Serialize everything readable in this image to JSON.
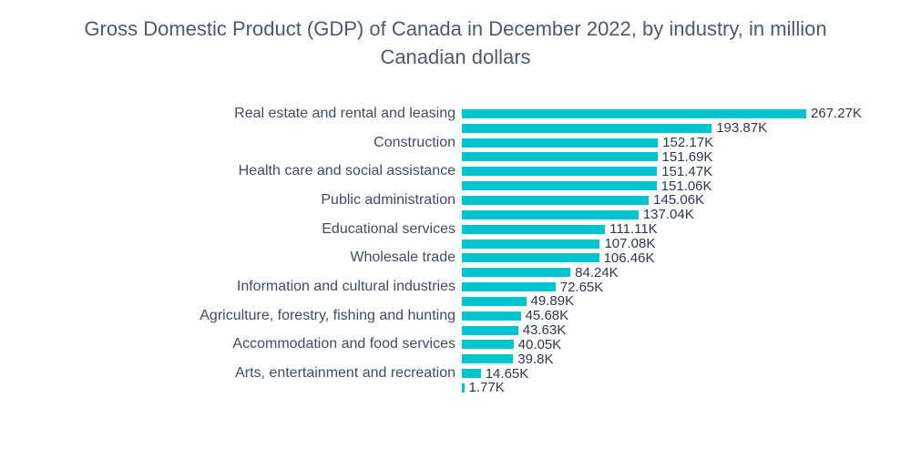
{
  "title": "Gross Domestic Product (GDP) of Canada in December 2022, by industry, in million Canadian dollars",
  "chart_data": {
    "type": "bar",
    "orientation": "horizontal",
    "title": "Gross Domestic Product (GDP) of Canada in December 2022, by industry, in million Canadian dollars",
    "unit": "million Canadian dollars (values shown in K = thousands of millions)",
    "xlim": [
      0,
      280
    ],
    "legend": false,
    "grid": false,
    "value_labels": "end-of-bar",
    "colors": {
      "bar": "#00C5CE",
      "category_label": "#414D5E",
      "value_label": "#2F3847",
      "title": "#4E5A6B",
      "background": "#FFFFFF"
    },
    "series": [
      {
        "label": "Real estate and rental and leasing",
        "value": 267.27,
        "display": "267.27K"
      },
      {
        "label": "",
        "value": 193.87,
        "display": "193.87K"
      },
      {
        "label": "Construction",
        "value": 152.17,
        "display": "152.17K"
      },
      {
        "label": "",
        "value": 151.69,
        "display": "151.69K"
      },
      {
        "label": "Health care and social assistance",
        "value": 151.47,
        "display": "151.47K"
      },
      {
        "label": "",
        "value": 151.06,
        "display": "151.06K"
      },
      {
        "label": "Public administration",
        "value": 145.06,
        "display": "145.06K"
      },
      {
        "label": "",
        "value": 137.04,
        "display": "137.04K"
      },
      {
        "label": "Educational services",
        "value": 111.11,
        "display": "111.11K"
      },
      {
        "label": "",
        "value": 107.08,
        "display": "107.08K"
      },
      {
        "label": "Wholesale trade",
        "value": 106.46,
        "display": "106.46K"
      },
      {
        "label": "",
        "value": 84.24,
        "display": "84.24K"
      },
      {
        "label": "Information and cultural industries",
        "value": 72.65,
        "display": "72.65K"
      },
      {
        "label": "",
        "value": 49.89,
        "display": "49.89K"
      },
      {
        "label": "Agriculture, forestry, fishing and hunting",
        "value": 45.68,
        "display": "45.68K"
      },
      {
        "label": "",
        "value": 43.63,
        "display": "43.63K"
      },
      {
        "label": "Accommodation and food services",
        "value": 40.05,
        "display": "40.05K"
      },
      {
        "label": "",
        "value": 39.8,
        "display": "39.8K"
      },
      {
        "label": "Arts, entertainment and recreation",
        "value": 14.65,
        "display": "14.65K"
      },
      {
        "label": "",
        "value": 1.77,
        "display": "1.77K"
      }
    ]
  }
}
